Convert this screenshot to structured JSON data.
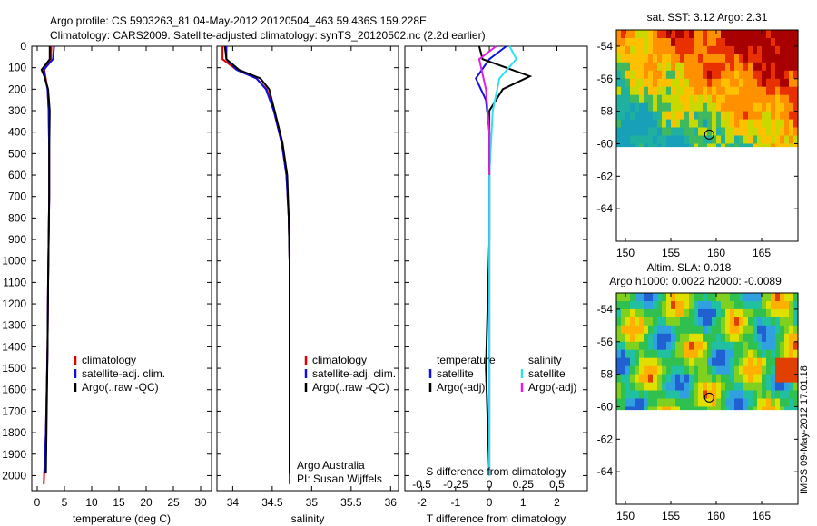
{
  "header": {
    "title_line1": "Argo profile: CS 5903263_81 04-May-2012 20120504_463 59.436S 159.228E",
    "title_line2": "Climatology: CARS2009. Satellite-adjusted climatology: synTS_20120502.nc (2.2d earlier)"
  },
  "colors": {
    "climatology": "#e00000",
    "satellite": "#1010e0",
    "argo": "#000000",
    "sal_satellite": "#30e0f0",
    "sal_argo": "#e020e0"
  },
  "chart_data": [
    {
      "type": "line",
      "id": "temperature",
      "xlabel": "temperature (deg C)",
      "xlim": [
        -1,
        32
      ],
      "ylim": [
        2070,
        0
      ],
      "xticks": [
        "0",
        "5",
        "10",
        "15",
        "20",
        "25",
        "30"
      ],
      "xtick_values": [
        0,
        5,
        10,
        15,
        20,
        25,
        30
      ],
      "yticks": [
        "0",
        "100",
        "200",
        "300",
        "400",
        "500",
        "600",
        "700",
        "800",
        "900",
        "1000",
        "1100",
        "1200",
        "1300",
        "1400",
        "1500",
        "1600",
        "1700",
        "1800",
        "1900",
        "2000"
      ],
      "ytick_values": [
        0,
        100,
        200,
        300,
        400,
        500,
        600,
        700,
        800,
        900,
        1000,
        1100,
        1200,
        1300,
        1400,
        1500,
        1600,
        1700,
        1800,
        1900,
        2000
      ],
      "legend": [
        "climatology",
        "satellite-adj. clim.",
        "Argo(..raw -QC)"
      ],
      "series": [
        {
          "name": "climatology",
          "color_key": "climatology",
          "x": [
            2.6,
            2.5,
            1.3,
            1.5,
            1.9,
            2.1,
            2.2,
            2.2,
            2.1,
            2.0,
            1.9,
            1.6,
            1.2
          ],
          "y": [
            0,
            60,
            110,
            140,
            200,
            300,
            500,
            700,
            900,
            1100,
            1400,
            1800,
            2040
          ]
        },
        {
          "name": "satellite-adj. clim.",
          "color_key": "satellite",
          "x": [
            3.1,
            2.9,
            1.2,
            1.4,
            1.9,
            2.1,
            2.2,
            2.2,
            2.1,
            2.0,
            1.9,
            1.6,
            1.3
          ],
          "y": [
            0,
            60,
            110,
            140,
            200,
            300,
            500,
            700,
            900,
            1100,
            1400,
            1800,
            1990
          ]
        },
        {
          "name": "Argo(..raw -QC)",
          "color_key": "argo",
          "x": [
            2.3,
            2.3,
            0.8,
            1.3,
            2.0,
            2.3,
            2.2,
            2.2,
            2.1,
            2.0,
            1.9,
            1.7,
            1.6
          ],
          "y": [
            0,
            60,
            110,
            140,
            200,
            300,
            500,
            700,
            900,
            1100,
            1400,
            1800,
            1990
          ]
        }
      ]
    },
    {
      "type": "line",
      "id": "salinity",
      "xlabel": "salinity",
      "xlim": [
        33.8,
        36.1
      ],
      "ylim": [
        2070,
        0
      ],
      "xticks": [
        "34",
        "34.5",
        "35",
        "35.5",
        "36"
      ],
      "xtick_values": [
        34,
        34.5,
        35,
        35.5,
        36
      ],
      "legend": [
        "climatology",
        "satellite-adj. clim.",
        "Argo(..raw -QC)"
      ],
      "annotation": [
        "Argo Australia",
        "PI: Susan Wijffels"
      ],
      "series": [
        {
          "name": "climatology",
          "color_key": "climatology",
          "x": [
            33.87,
            33.87,
            34.05,
            34.3,
            34.43,
            34.52,
            34.62,
            34.68,
            34.71,
            34.72,
            34.72,
            34.72,
            34.72
          ],
          "y": [
            0,
            60,
            110,
            150,
            200,
            300,
            450,
            600,
            800,
            1000,
            1400,
            1800,
            2040
          ]
        },
        {
          "name": "satellite-adj. clim.",
          "color_key": "satellite",
          "x": [
            33.92,
            33.92,
            34.05,
            34.3,
            34.42,
            34.52,
            34.62,
            34.68,
            34.71,
            34.72,
            34.72,
            34.72,
            34.72
          ],
          "y": [
            0,
            60,
            110,
            150,
            200,
            300,
            450,
            600,
            800,
            1000,
            1400,
            1800,
            1990
          ]
        },
        {
          "name": "Argo(..raw -QC)",
          "color_key": "argo",
          "x": [
            33.9,
            33.92,
            34.08,
            34.35,
            34.46,
            34.53,
            34.63,
            34.69,
            34.71,
            34.72,
            34.72,
            34.72,
            34.72
          ],
          "y": [
            0,
            60,
            110,
            150,
            200,
            300,
            450,
            600,
            800,
            1000,
            1400,
            1800,
            1990
          ]
        }
      ]
    },
    {
      "type": "line",
      "id": "difference",
      "xlabel": "T difference from climatology",
      "xlabel_top": "S difference from climatology",
      "xlim": [
        -2.5,
        2.9
      ],
      "ylim": [
        2070,
        0
      ],
      "xticks": [
        "-2",
        "-1",
        "0",
        "1",
        "2"
      ],
      "xtick_values": [
        -2,
        -1,
        0,
        1,
        2
      ],
      "sticks": [
        "-0.5",
        "-0.25",
        "0",
        "0.25",
        "0.5"
      ],
      "stick_values": [
        -2,
        -1,
        0,
        1,
        2
      ],
      "legend_temp": {
        "title": "temperature",
        "items": [
          "satellite",
          "Argo(-adj)"
        ]
      },
      "legend_sal": {
        "title": "salinity",
        "items": [
          "satellite",
          "Argo(-adj)"
        ]
      },
      "series": [
        {
          "name": "T satellite",
          "color_key": "satellite",
          "x": [
            0.5,
            0.0,
            -0.4,
            -0.1,
            0.0,
            0.0,
            0.0,
            0.0
          ],
          "y": [
            0,
            60,
            150,
            250,
            400,
            600,
            1000,
            2000
          ]
        },
        {
          "name": "T Argo(-adj)",
          "color_key": "argo",
          "x": [
            -0.3,
            -0.2,
            1.2,
            0.4,
            0.0,
            0.0,
            0.0,
            -0.1,
            0.0
          ],
          "y": [
            0,
            60,
            140,
            200,
            300,
            500,
            900,
            1500,
            2000
          ]
        },
        {
          "name": "S satellite",
          "color_key": "sal_satellite",
          "x": [
            0.6,
            0.8,
            0.3,
            0.1,
            0.0,
            0.0
          ],
          "y": [
            0,
            60,
            150,
            300,
            600,
            2000
          ]
        },
        {
          "name": "S Argo(-adj)",
          "color_key": "sal_argo",
          "x": [
            0.2,
            -0.3,
            -0.1,
            0.0,
            0.0
          ],
          "y": [
            0,
            60,
            200,
            400,
            600
          ]
        }
      ]
    }
  ],
  "maps": [
    {
      "title": "sat. SST: 3.12 Argo: 2.31",
      "xticks": [
        "150",
        "155",
        "160",
        "165"
      ],
      "xtick_values": [
        150,
        155,
        160,
        165
      ],
      "yticks": [
        "-54",
        "-56",
        "-58",
        "-60",
        "-62",
        "-64"
      ],
      "ytick_values": [
        -54,
        -56,
        -58,
        -60,
        -62,
        -64
      ],
      "xlim": [
        149,
        169
      ],
      "ylim": [
        -66,
        -53
      ],
      "data_lat_min": -60.2,
      "marker": {
        "lon": 159.228,
        "lat": -59.436
      },
      "field": "sst"
    },
    {
      "title_line1": "Altim. SLA: 0.018",
      "title_line2": "Argo h1000: 0.0022 h2000: -0.0089",
      "xticks": [
        "150",
        "155",
        "160",
        "165"
      ],
      "xtick_values": [
        150,
        155,
        160,
        165
      ],
      "yticks": [
        "-54",
        "-56",
        "-58",
        "-60",
        "-62",
        "-64"
      ],
      "ytick_values": [
        -54,
        -56,
        -58,
        -60,
        -62,
        -64
      ],
      "xlim": [
        149,
        169
      ],
      "ylim": [
        -66,
        -53
      ],
      "data_lat_min": -60.2,
      "marker": {
        "lon": 159.228,
        "lat": -59.436
      },
      "field": "sla"
    }
  ],
  "footer": {
    "stamp": "IMOS 09-May-2012 17:01:18"
  }
}
